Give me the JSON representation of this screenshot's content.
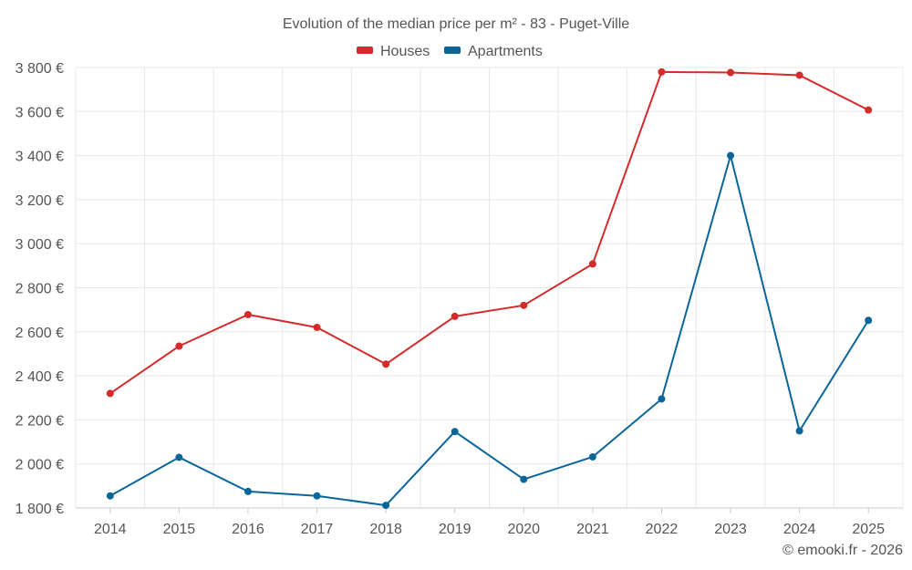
{
  "chart_data": {
    "type": "line",
    "title": "Evolution of the median price per m² - 83 - Puget-Ville",
    "categories": [
      "2014",
      "2015",
      "2016",
      "2017",
      "2018",
      "2019",
      "2020",
      "2021",
      "2022",
      "2023",
      "2024",
      "2025"
    ],
    "series": [
      {
        "name": "Houses",
        "color": "#d42a2a",
        "values": [
          2320,
          2535,
          2678,
          2620,
          2453,
          2670,
          2720,
          2908,
          3780,
          3777,
          3765,
          3607
        ]
      },
      {
        "name": "Apartments",
        "color": "#0a6699",
        "values": [
          1855,
          2030,
          1875,
          1855,
          1812,
          2147,
          1930,
          2032,
          2295,
          3400,
          2150,
          2652
        ]
      }
    ],
    "ylim": [
      1800,
      3800
    ],
    "yticks": [
      1800,
      2000,
      2200,
      2400,
      2600,
      2800,
      3000,
      3200,
      3400,
      3600,
      3800
    ],
    "ytick_labels": [
      "1 800 €",
      "2 000 €",
      "2 200 €",
      "2 400 €",
      "2 600 €",
      "2 800 €",
      "3 000 €",
      "3 200 €",
      "3 400 €",
      "3 600 €",
      "3 800 €"
    ],
    "grid": true,
    "legend": "top-center",
    "xlabel": "",
    "ylabel": ""
  },
  "credit": "© emooki.fr - 2026"
}
